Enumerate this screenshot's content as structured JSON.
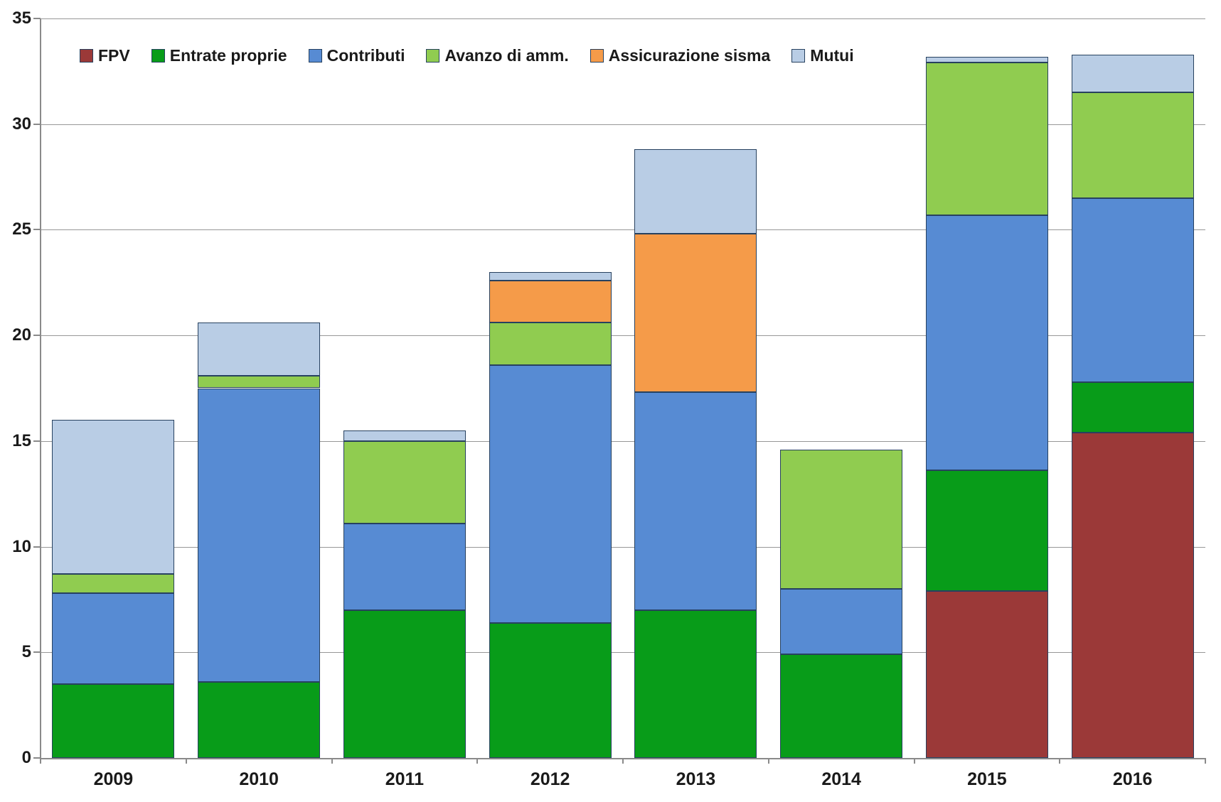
{
  "chart_data": {
    "type": "bar",
    "stacked": true,
    "title": "",
    "xlabel": "",
    "ylabel": "",
    "categories": [
      "2009",
      "2010",
      "2011",
      "2012",
      "2013",
      "2014",
      "2015",
      "2016"
    ],
    "series": [
      {
        "name": "FPV",
        "color": "#9B3938",
        "values": [
          0,
          0,
          0,
          0,
          0,
          0,
          7.9,
          15.4
        ]
      },
      {
        "name": "Entrate proprie",
        "color": "#089C19",
        "values": [
          3.5,
          3.6,
          7.0,
          6.4,
          7.0,
          4.9,
          5.7,
          2.4
        ]
      },
      {
        "name": "Contributi",
        "color": "#578BD3",
        "values": [
          4.3,
          13.9,
          4.1,
          12.2,
          10.3,
          3.1,
          12.1,
          8.7
        ]
      },
      {
        "name": "Avanzo di amm.",
        "color": "#90CC50",
        "values": [
          0.9,
          0.6,
          3.9,
          2.0,
          0,
          6.6,
          7.2,
          5.0
        ]
      },
      {
        "name": "Assicurazione sisma",
        "color": "#F59B49",
        "values": [
          0,
          0,
          0,
          2.0,
          7.5,
          0,
          0,
          0
        ]
      },
      {
        "name": "Mutui",
        "color": "#B9CDE5",
        "values": [
          7.3,
          2.5,
          0.5,
          0.4,
          4.0,
          0,
          0.3,
          1.8
        ]
      }
    ],
    "totals": [
      16.0,
      20.6,
      15.5,
      23.0,
      28.8,
      14.6,
      33.2,
      33.3
    ],
    "ylim": [
      0,
      35
    ],
    "y_ticks": [
      0,
      5,
      10,
      15,
      20,
      25,
      30,
      35
    ],
    "grid": "horizontal",
    "legend_position": "top-left-inside",
    "colors": {
      "segment_border": "#27415F",
      "gridline": "#979797",
      "axis": "#8A8A8A",
      "text": "#1A1A1A",
      "background": "#FFFFFF"
    }
  }
}
